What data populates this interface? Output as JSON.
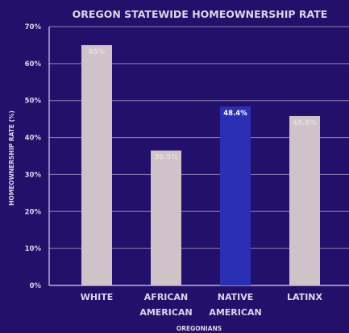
{
  "chart_data": {
    "type": "bar",
    "title": "OREGON STATEWIDE HOMEOWNERSHIP RATE",
    "xlabel": "OREGONIANS",
    "ylabel": "HOMEOWNERSHIP RATE (%)",
    "categories": [
      "WHITE",
      "AFRICAN AMERICAN",
      "NATIVE AMERICAN",
      "LATINX"
    ],
    "category_lines": [
      [
        "WHITE"
      ],
      [
        "AFRICAN",
        "AMERICAN"
      ],
      [
        "NATIVE",
        "AMERICAN"
      ],
      [
        "LATINX"
      ]
    ],
    "values": [
      65,
      36.5,
      48.4,
      45.8
    ],
    "data_labels": [
      "65%",
      "36.5%",
      "48.4%",
      "45.8%"
    ],
    "ylim": [
      0,
      70
    ],
    "yticks": [
      0,
      10,
      20,
      30,
      40,
      50,
      60,
      70
    ],
    "ytick_labels": [
      "0%",
      "10%",
      "20%",
      "30%",
      "40%",
      "50%",
      "60%",
      "70%"
    ],
    "grid": true,
    "colors": {
      "background": "#23106a",
      "bar": "#cfc3c9",
      "bar_highlight": "#2a2fb3",
      "highlight_label": "#ffffff",
      "muted_label": "#e4dde1",
      "text": "#dcd6ea",
      "grid": "#b6abd0",
      "axis": "#d9d2ea"
    },
    "highlight_index": 2
  }
}
